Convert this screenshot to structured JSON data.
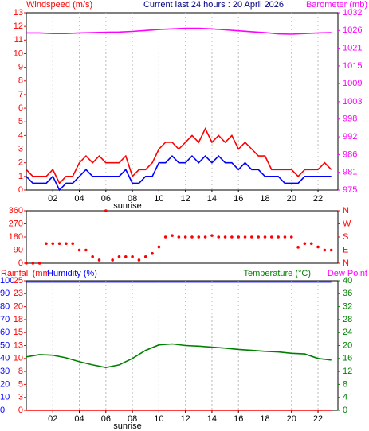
{
  "chart_data": [
    {
      "type": "line",
      "title": "Current last 24 hours : 20 April 2026",
      "y_label": "Windspeed (m/s)",
      "y2_label": "Barometer (mb)",
      "y_color": "#ff0000",
      "y2_color": "#ff00ff",
      "annotation": "sunrise",
      "xlim": [
        0,
        23.5
      ],
      "xticks": [
        {
          "value": 2,
          "label": "02"
        },
        {
          "value": 4,
          "label": "04"
        },
        {
          "value": 6,
          "label": "06"
        },
        {
          "value": 8,
          "label": "08"
        },
        10,
        12,
        14,
        16,
        18,
        20,
        22
      ],
      "ylim": [
        0,
        13
      ],
      "yticks": [
        0,
        1,
        2,
        3,
        4,
        5,
        6,
        7,
        8,
        9,
        10,
        11,
        12,
        13
      ],
      "y2lim": [
        975,
        1032
      ],
      "y2ticks": [
        975,
        {
          "value": 980.7,
          "label": "981"
        },
        {
          "value": 986.4,
          "label": "986"
        },
        {
          "value": 992.1,
          "label": "992"
        },
        {
          "value": 997.8,
          "label": "998"
        },
        {
          "value": 1003.4,
          "label": "1003"
        },
        {
          "value": 1009.2,
          "label": "1009"
        },
        {
          "value": 1014.9,
          "label": "1015"
        },
        {
          "value": 1020.6,
          "label": "1021"
        },
        {
          "value": 1026.3,
          "label": "1026"
        },
        1032
      ],
      "grid": true,
      "series": [
        {
          "color": "#ff0000",
          "x": [
            0,
            0.5,
            1,
            1.5,
            2,
            2.5,
            3,
            3.5,
            4,
            4.5,
            5,
            5.5,
            6,
            6.5,
            7,
            7.5,
            8,
            8.5,
            9,
            9.5,
            10,
            10.5,
            11,
            11.5,
            12,
            12.5,
            13,
            13.5,
            14,
            14.5,
            15,
            15.5,
            16,
            16.5,
            17,
            17.5,
            18,
            18.5,
            19,
            19.5,
            20,
            20.5,
            21,
            21.5,
            22,
            22.5,
            23
          ],
          "values": [
            1.5,
            1,
            1,
            1,
            1.5,
            0.5,
            1,
            1,
            2,
            2.5,
            2,
            2.5,
            2,
            2,
            2,
            2.5,
            1,
            1.5,
            1.5,
            2,
            3,
            3.5,
            3.5,
            3,
            3.5,
            4,
            3.5,
            4.5,
            3.5,
            4,
            3.5,
            4,
            3,
            3.5,
            3,
            2.5,
            2.5,
            1.5,
            1.5,
            1.5,
            1.5,
            1,
            1.5,
            1.5,
            1.5,
            2,
            1.5
          ]
        },
        {
          "color": "#0000ff",
          "x": [
            0,
            0.5,
            1,
            1.5,
            2,
            2.5,
            3,
            3.5,
            4,
            4.5,
            5,
            5.5,
            6,
            6.5,
            7,
            7.5,
            8,
            8.5,
            9,
            9.5,
            10,
            10.5,
            11,
            11.5,
            12,
            12.5,
            13,
            13.5,
            14,
            14.5,
            15,
            15.5,
            16,
            16.5,
            17,
            17.5,
            18,
            18.5,
            19,
            19.5,
            20,
            20.5,
            21,
            21.5,
            22,
            22.5,
            23
          ],
          "values": [
            1,
            0.5,
            0.5,
            0.5,
            1,
            0,
            0.5,
            0.5,
            1,
            1.5,
            1,
            1,
            1,
            1,
            1,
            1.5,
            0.5,
            0.5,
            1,
            1,
            2,
            2,
            2.5,
            2,
            2,
            2.5,
            2,
            2.5,
            2,
            2.5,
            2,
            2,
            1.5,
            2,
            1.5,
            1.5,
            1,
            1,
            1,
            0.5,
            0.5,
            0.5,
            1,
            1,
            1,
            1,
            1
          ]
        },
        {
          "color": "#ff00ff",
          "axis": "y2",
          "x": [
            0,
            1,
            2,
            3,
            4,
            5,
            6,
            7,
            8,
            9,
            10,
            11,
            12,
            13,
            14,
            15,
            16,
            17,
            18,
            19,
            20,
            21,
            22,
            23
          ],
          "values": [
            1025.5,
            1025.5,
            1025.3,
            1025.3,
            1025.5,
            1025.6,
            1025.7,
            1025.8,
            1026.0,
            1026.3,
            1026.6,
            1026.8,
            1027.0,
            1027.0,
            1026.8,
            1026.5,
            1026.2,
            1025.9,
            1025.6,
            1025.2,
            1025.1,
            1025.3,
            1025.5,
            1025.6
          ]
        }
      ]
    },
    {
      "type": "scatter",
      "y_color": "#ff0000",
      "y2_color": "#ff0000",
      "xlim": [
        0,
        23.5
      ],
      "ylim": [
        0,
        360
      ],
      "yticks": [
        0,
        90,
        180,
        270,
        360
      ],
      "y2lim": [
        0,
        360
      ],
      "y2ticks": [
        {
          "value": 0,
          "label": "N"
        },
        {
          "value": 90,
          "label": "E"
        },
        {
          "value": 180,
          "label": "S"
        },
        {
          "value": 270,
          "label": "W"
        },
        {
          "value": 360,
          "label": "N"
        }
      ],
      "series": [
        {
          "color": "#ff0000",
          "x": [
            0,
            0.5,
            1,
            1.5,
            2,
            2.5,
            3,
            3.5,
            4,
            4.5,
            5,
            5.5,
            6,
            6.5,
            7,
            7.5,
            8,
            8.5,
            9,
            9.5,
            10,
            10.5,
            11,
            11.5,
            12,
            12.5,
            13,
            13.5,
            14,
            14.5,
            15,
            15.5,
            16,
            16.5,
            17,
            17.5,
            18,
            18.5,
            19,
            19.5,
            20,
            20.5,
            21,
            21.5,
            22,
            22.5,
            23
          ],
          "values": [
            0,
            0,
            0,
            135,
            135,
            135,
            135,
            135,
            90,
            90,
            45,
            22,
            360,
            22,
            45,
            45,
            45,
            22,
            45,
            67,
            112,
            180,
            190,
            180,
            180,
            180,
            180,
            180,
            190,
            180,
            180,
            180,
            180,
            180,
            180,
            180,
            180,
            180,
            180,
            180,
            180,
            110,
            135,
            135,
            112,
            90,
            90
          ]
        }
      ]
    },
    {
      "type": "line",
      "y_label": "Rainfall (mm",
      "y3_label": "Humidity (%)",
      "y2_label": "Temperature (°C)",
      "y2_label_2": "Dew Point",
      "y_color": "#ff0000",
      "y3_color": "#0000ff",
      "y2_color": "#008000",
      "y2_label_2_color": "#ff00ff",
      "annotation": "sunrise",
      "xlim": [
        0,
        23.5
      ],
      "xticks": [
        {
          "value": 2,
          "label": "02"
        },
        {
          "value": 4,
          "label": "04"
        },
        {
          "value": 6,
          "label": "06"
        },
        {
          "value": 8,
          "label": "08"
        },
        10,
        12,
        14,
        16,
        18,
        20,
        22
      ],
      "ylim": [
        0,
        25
      ],
      "yticks": [
        0,
        {
          "value": 2.5,
          "label": "3"
        },
        5,
        {
          "value": 7.5,
          "label": "8"
        },
        10,
        {
          "value": 12.5,
          "label": "13"
        },
        15,
        {
          "value": 17.5,
          "label": "18"
        },
        20,
        {
          "value": 22.5,
          "label": "23"
        },
        25
      ],
      "y3lim": [
        0,
        100
      ],
      "y3ticks": [
        0,
        10,
        20,
        30,
        40,
        50,
        60,
        70,
        80,
        90,
        100
      ],
      "y2lim": [
        0,
        40
      ],
      "y2ticks": [
        0,
        4,
        8,
        12,
        16,
        20,
        24,
        28,
        32,
        36,
        40
      ],
      "grid": true,
      "x": [
        0,
        1,
        2,
        3,
        4,
        5,
        6,
        7,
        8,
        9,
        10,
        11,
        12,
        13,
        14,
        15,
        16,
        17,
        18,
        19,
        20,
        21,
        22,
        23
      ],
      "series": [
        {
          "color": "#ff0000",
          "values": [
            0,
            0,
            0,
            0,
            0,
            0,
            0,
            0,
            0,
            0,
            0,
            0,
            0,
            0,
            0,
            0,
            0,
            0,
            0,
            0,
            0,
            0,
            0,
            0
          ]
        },
        {
          "color": "#0000ff",
          "axis": "y3",
          "values": [
            99,
            99,
            99,
            99,
            99,
            99,
            99,
            99,
            99,
            99,
            99,
            99,
            99,
            99,
            99,
            99,
            99,
            99,
            99,
            99,
            99,
            99,
            99,
            99
          ]
        },
        {
          "color": "#008000",
          "axis": "y2",
          "values": [
            16.5,
            17.2,
            17,
            16.2,
            15,
            14,
            13.2,
            14,
            16,
            18.5,
            20.2,
            20.5,
            20,
            19.8,
            19.5,
            19.2,
            18.8,
            18.5,
            18.2,
            18,
            17.6,
            17.4,
            16,
            15.5
          ]
        }
      ]
    }
  ]
}
